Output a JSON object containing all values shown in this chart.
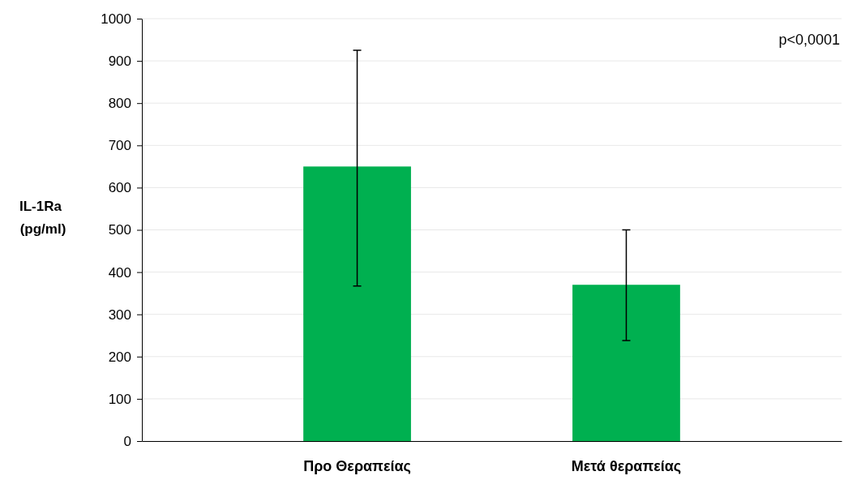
{
  "chart_data": {
    "type": "bar",
    "ylabel": "IL-1Ra\n(pg/ml)",
    "categories": [
      "Προ Θεραπείας",
      "Μετά θεραπείας"
    ],
    "values": [
      650,
      370
    ],
    "color": "#00b050",
    "errors": [
      [
        367,
        925
      ],
      [
        238,
        500
      ]
    ],
    "ylim": [
      0,
      1000
    ],
    "yticks": [
      0,
      100,
      200,
      300,
      400,
      500,
      600,
      700,
      800,
      900,
      1000
    ],
    "grid": "y",
    "annotations": [
      "p<0,0001"
    ]
  }
}
